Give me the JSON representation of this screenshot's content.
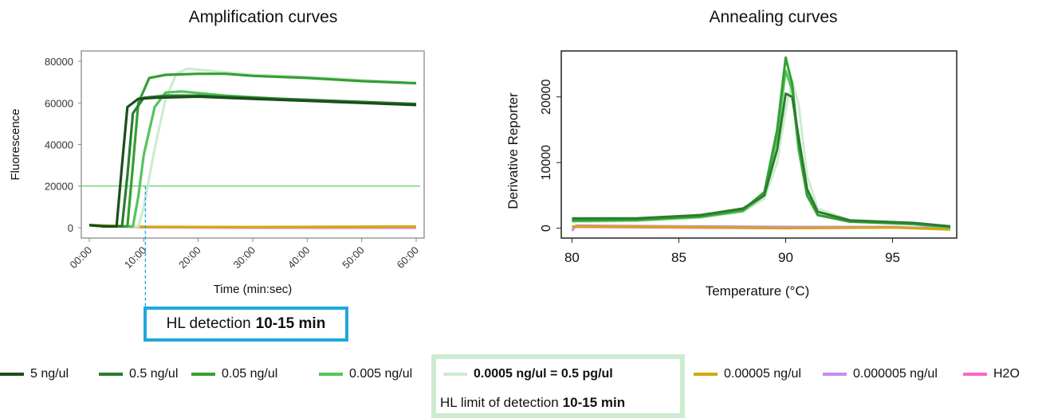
{
  "chart_data": [
    {
      "type": "line",
      "title": "Amplification curves",
      "xlabel": "Time (min:sec)",
      "ylabel": "Fluorescence",
      "xlim": [
        0,
        60
      ],
      "ylim": [
        -5000,
        85000
      ],
      "x_ticks": [
        "00:00",
        "10:00",
        "20:00",
        "30:00",
        "40:00",
        "50:00",
        "60:00"
      ],
      "y_ticks": [
        "0",
        "20000",
        "40000",
        "60000",
        "80000"
      ],
      "threshold": 20000,
      "series": [
        {
          "name": "5 ng/ul",
          "color": "#1b4d1b",
          "points": [
            [
              0,
              1200
            ],
            [
              3,
              600
            ],
            [
              5,
              600
            ],
            [
              6,
              30000
            ],
            [
              7,
              58000
            ],
            [
              9,
              62000
            ],
            [
              12,
              62500
            ],
            [
              20,
              63000
            ],
            [
              30,
              62000
            ],
            [
              40,
              61000
            ],
            [
              50,
              60000
            ],
            [
              60,
              59000
            ]
          ]
        },
        {
          "name": "0.5 ng/ul",
          "color": "#2a7d2e",
          "points": [
            [
              0,
              1200
            ],
            [
              3,
              600
            ],
            [
              6,
              600
            ],
            [
              7,
              25000
            ],
            [
              8,
              55000
            ],
            [
              10,
              62500
            ],
            [
              14,
              63500
            ],
            [
              20,
              63500
            ],
            [
              30,
              62500
            ],
            [
              40,
              61500
            ],
            [
              50,
              60500
            ],
            [
              60,
              59500
            ]
          ]
        },
        {
          "name": "0.05 ng/ul",
          "color": "#33a032",
          "points": [
            [
              0,
              1200
            ],
            [
              3,
              600
            ],
            [
              7,
              600
            ],
            [
              8,
              30000
            ],
            [
              9,
              60000
            ],
            [
              11,
              72000
            ],
            [
              14,
              73500
            ],
            [
              20,
              74000
            ],
            [
              25,
              74000
            ],
            [
              30,
              73000
            ],
            [
              40,
              72000
            ],
            [
              50,
              70500
            ],
            [
              60,
              69500
            ]
          ]
        },
        {
          "name": "0.005 ng/ul",
          "color": "#55c45a",
          "points": [
            [
              0,
              1200
            ],
            [
              3,
              600
            ],
            [
              8,
              600
            ],
            [
              9,
              15000
            ],
            [
              10,
              35000
            ],
            [
              12,
              58000
            ],
            [
              14,
              65000
            ],
            [
              17,
              65500
            ],
            [
              25,
              63500
            ],
            [
              35,
              62000
            ],
            [
              45,
              60500
            ],
            [
              60,
              59500
            ]
          ]
        },
        {
          "name": "0.0005 ng/ul = 0.5 pg/ul",
          "color": "#cdebd0",
          "points": [
            [
              0,
              1200
            ],
            [
              3,
              600
            ],
            [
              9,
              600
            ],
            [
              10,
              10000
            ],
            [
              12,
              38000
            ],
            [
              14,
              62000
            ],
            [
              16,
              74000
            ],
            [
              18,
              76500
            ],
            [
              22,
              75500
            ],
            [
              30,
              73500
            ],
            [
              40,
              72500
            ],
            [
              50,
              71000
            ],
            [
              60,
              69500
            ]
          ]
        },
        {
          "name": "0.00005 ng/ul",
          "color": "#d4a80c",
          "points": [
            [
              0,
              1300
            ],
            [
              10,
              400
            ],
            [
              30,
              300
            ],
            [
              60,
              500
            ]
          ]
        },
        {
          "name": "0.000005 ng/ul",
          "color": "#c58af5",
          "points": [
            [
              0,
              1200
            ],
            [
              10,
              300
            ],
            [
              30,
              200
            ],
            [
              60,
              300
            ]
          ]
        },
        {
          "name": "H2O",
          "color": "#ff66c4",
          "points": [
            [
              0,
              1200
            ],
            [
              10,
              200
            ],
            [
              30,
              0
            ],
            [
              60,
              0
            ]
          ]
        }
      ]
    },
    {
      "type": "line",
      "title": "Annealing curves",
      "xlabel": "Temperature (°C)",
      "ylabel": "Derivative Reporter",
      "xlim": [
        79.5,
        98
      ],
      "ylim": [
        -1500,
        27000
      ],
      "x_ticks": [
        "80",
        "85",
        "90",
        "95"
      ],
      "y_ticks": [
        "0",
        "10000",
        "20000"
      ],
      "series": [
        {
          "name": "0.5 ng/ul",
          "color": "#2a7d2e",
          "points": [
            [
              80,
              1500
            ],
            [
              83,
              1500
            ],
            [
              86,
              2000
            ],
            [
              88,
              3000
            ],
            [
              89,
              5000
            ],
            [
              89.6,
              12000
            ],
            [
              90,
              20500
            ],
            [
              90.3,
              20000
            ],
            [
              90.6,
              14000
            ],
            [
              91,
              6000
            ],
            [
              91.5,
              2500
            ],
            [
              93,
              1200
            ],
            [
              96,
              800
            ],
            [
              97.7,
              300
            ]
          ]
        },
        {
          "name": "0.05 ng/ul",
          "color": "#33a032",
          "points": [
            [
              80,
              1200
            ],
            [
              83,
              1300
            ],
            [
              86,
              1800
            ],
            [
              88,
              2800
            ],
            [
              89,
              5500
            ],
            [
              89.6,
              15000
            ],
            [
              90,
              26000
            ],
            [
              90.3,
              22000
            ],
            [
              90.6,
              13000
            ],
            [
              91,
              5000
            ],
            [
              91.5,
              2000
            ],
            [
              93,
              1000
            ],
            [
              96,
              700
            ],
            [
              97.7,
              200
            ]
          ]
        },
        {
          "name": "0.005 ng/ul",
          "color": "#55c45a",
          "points": [
            [
              80,
              1100
            ],
            [
              83,
              1200
            ],
            [
              86,
              1700
            ],
            [
              88,
              2600
            ],
            [
              89,
              5000
            ],
            [
              89.6,
              14000
            ],
            [
              90,
              24000
            ],
            [
              90.3,
              21000
            ],
            [
              90.6,
              12000
            ],
            [
              91,
              5000
            ],
            [
              91.5,
              2000
            ],
            [
              93,
              1000
            ],
            [
              96,
              600
            ],
            [
              97.7,
              100
            ]
          ]
        },
        {
          "name": "0.0005 ng/ul = 0.5 pg/ul",
          "color": "#cdebd0",
          "points": [
            [
              80,
              1000
            ],
            [
              83,
              1100
            ],
            [
              86,
              1600
            ],
            [
              88,
              2500
            ],
            [
              89,
              4500
            ],
            [
              89.6,
              10000
            ],
            [
              90,
              18000
            ],
            [
              90.3,
              22500
            ],
            [
              90.6,
              19000
            ],
            [
              91,
              8000
            ],
            [
              91.5,
              3000
            ],
            [
              93,
              1200
            ],
            [
              96,
              600
            ],
            [
              97.7,
              100
            ]
          ]
        },
        {
          "name": "0.00005 ng/ul",
          "color": "#d4a80c",
          "points": [
            [
              80,
              300
            ],
            [
              85,
              200
            ],
            [
              90,
              0
            ],
            [
              95,
              100
            ],
            [
              97.7,
              -200
            ]
          ]
        },
        {
          "name": "0.000005 ng/ul",
          "color": "#c58af5",
          "points": [
            [
              80,
              -400
            ],
            [
              80.2,
              400
            ],
            [
              85,
              300
            ],
            [
              90,
              200
            ],
            [
              95,
              200
            ],
            [
              97.7,
              -100
            ]
          ]
        },
        {
          "name": "H2O",
          "color": "#ff66c4",
          "points": [
            [
              80,
              200
            ],
            [
              85,
              100
            ],
            [
              90,
              0
            ],
            [
              95,
              100
            ],
            [
              97.7,
              0
            ]
          ]
        }
      ]
    }
  ],
  "annotations": {
    "hl_detection_prefix": "HL detection",
    "hl_detection_bold": "10-15 min",
    "limit_prefix": "HL limit of detection",
    "limit_bold": "10-15 min"
  },
  "legend": [
    {
      "label": "5 ng/ul",
      "color": "#1b4d1b"
    },
    {
      "label": "0.5 ng/ul",
      "color": "#2a7d2e"
    },
    {
      "label": "0.05 ng/ul",
      "color": "#33a032"
    },
    {
      "label": "0.005 ng/ul",
      "color": "#55c45a"
    },
    {
      "label": "0.0005 ng/ul = 0.5 pg/ul",
      "color": "#cdebd0",
      "bold": true
    },
    {
      "label": "0.00005 ng/ul",
      "color": "#d4a80c"
    },
    {
      "label": "0.000005 ng/ul",
      "color": "#c58af5"
    },
    {
      "label": "H2O",
      "color": "#ff66c4"
    }
  ],
  "colors": {
    "threshold_line": "#3cbf3c",
    "detection_marker": "#1ea8dc",
    "limit_box": "#cdebd0"
  }
}
